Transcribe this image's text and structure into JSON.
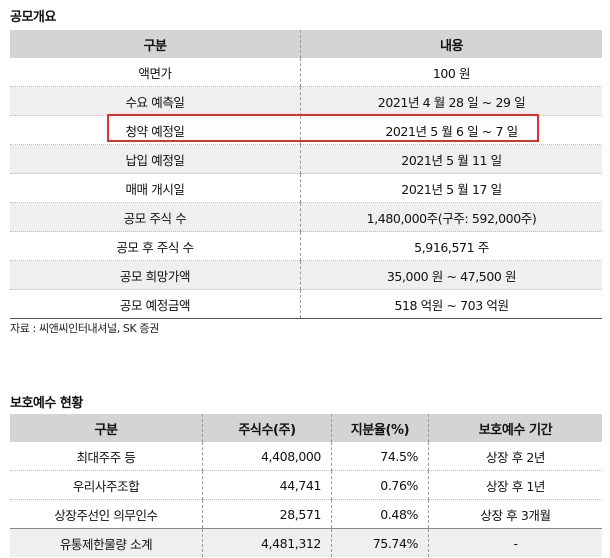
{
  "offering": {
    "title": "공모개요",
    "headers": [
      "구분",
      "내용"
    ],
    "rows": [
      [
        "액면가",
        "100 원"
      ],
      [
        "수요 예측일",
        "2021년 4 월 28 일 ~ 29 일"
      ],
      [
        "청약 예정일",
        "2021년 5 월 6 일 ~ 7 일"
      ],
      [
        "납입 예정일",
        "2021년 5 월 11 일"
      ],
      [
        "매매 개시일",
        "2021년 5 월 17 일"
      ],
      [
        "공모 주식 수",
        "1,480,000주(구주: 592,000주)"
      ],
      [
        "공모 후 주식 수",
        "5,916,571 주"
      ],
      [
        "공모 희망가액",
        "35,000 원 ~ 47,500 원"
      ],
      [
        "공모 예정금액",
        "518 억원 ~ 703 억원"
      ]
    ],
    "source": "자료 : 씨앤씨인터내셔널, SK 증권"
  },
  "lockup": {
    "title": "보호예수 현황",
    "headers": [
      "구분",
      "주식수(주)",
      "지분율(%)",
      "보호예수 기간"
    ],
    "rows": [
      [
        "최대주주 등",
        "4,408,000",
        "74.5%",
        "상장 후 2년"
      ],
      [
        "우리사주조합",
        "44,741",
        "0.76%",
        "상장 후 1년"
      ],
      [
        "상장주선인 의무인수",
        "28,571",
        "0.48%",
        "상장 후 3개월"
      ],
      [
        "유통제한물량 소계",
        "4,481,312",
        "75.74%",
        "-"
      ]
    ]
  },
  "colors": {
    "highlight": "#e0302e",
    "header_bg": "#d4d4d4",
    "alt_row_bg": "#efefef"
  }
}
